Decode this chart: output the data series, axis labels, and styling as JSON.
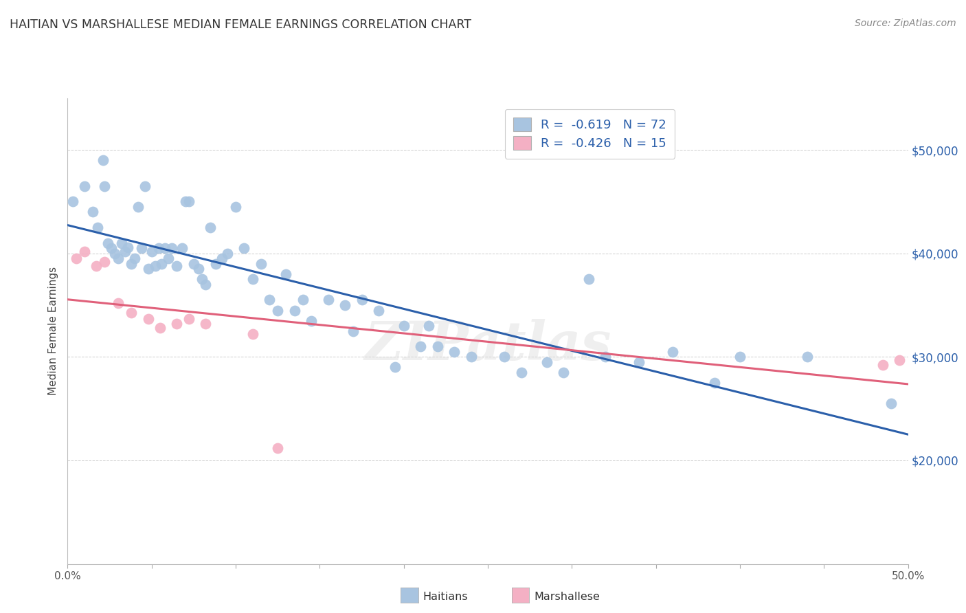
{
  "title": "HAITIAN VS MARSHALLESE MEDIAN FEMALE EARNINGS CORRELATION CHART",
  "source": "Source: ZipAtlas.com",
  "ylabel": "Median Female Earnings",
  "ytick_labels": [
    "$20,000",
    "$30,000",
    "$40,000",
    "$50,000"
  ],
  "ytick_values": [
    20000,
    30000,
    40000,
    50000
  ],
  "ymin": 10000,
  "ymax": 55000,
  "xmin": 0.0,
  "xmax": 0.5,
  "haitian_R": "-0.619",
  "haitian_N": "72",
  "marshallese_R": "-0.426",
  "marshallese_N": "15",
  "haitian_color": "#a8c4e0",
  "haitian_line_color": "#2b5faa",
  "marshallese_color": "#f4b0c4",
  "marshallese_line_color": "#e0607a",
  "legend_text_color": "#2b5faa",
  "title_color": "#333333",
  "watermark": "ZIPatlas",
  "grid_color": "#cccccc",
  "haitian_x": [
    0.003,
    0.01,
    0.015,
    0.018,
    0.021,
    0.022,
    0.024,
    0.026,
    0.028,
    0.03,
    0.032,
    0.034,
    0.036,
    0.038,
    0.04,
    0.042,
    0.044,
    0.046,
    0.048,
    0.05,
    0.052,
    0.054,
    0.056,
    0.058,
    0.06,
    0.062,
    0.065,
    0.068,
    0.07,
    0.072,
    0.075,
    0.078,
    0.08,
    0.082,
    0.085,
    0.088,
    0.092,
    0.095,
    0.1,
    0.105,
    0.11,
    0.115,
    0.12,
    0.125,
    0.13,
    0.135,
    0.14,
    0.145,
    0.155,
    0.165,
    0.17,
    0.175,
    0.185,
    0.195,
    0.2,
    0.21,
    0.215,
    0.22,
    0.23,
    0.24,
    0.26,
    0.27,
    0.285,
    0.295,
    0.31,
    0.32,
    0.34,
    0.36,
    0.385,
    0.4,
    0.44,
    0.49
  ],
  "haitian_y": [
    45000,
    46500,
    44000,
    42500,
    49000,
    46500,
    41000,
    40500,
    40000,
    39500,
    41000,
    40200,
    40600,
    39000,
    39500,
    44500,
    40500,
    46500,
    38500,
    40200,
    38800,
    40500,
    39000,
    40500,
    39500,
    40500,
    38800,
    40500,
    45000,
    45000,
    39000,
    38500,
    37500,
    37000,
    42500,
    39000,
    39500,
    40000,
    44500,
    40500,
    37500,
    39000,
    35500,
    34500,
    38000,
    34500,
    35500,
    33500,
    35500,
    35000,
    32500,
    35500,
    34500,
    29000,
    33000,
    31000,
    33000,
    31000,
    30500,
    30000,
    30000,
    28500,
    29500,
    28500,
    37500,
    30000,
    29500,
    30500,
    27500,
    30000,
    30000,
    25500
  ],
  "marshallese_x": [
    0.005,
    0.01,
    0.017,
    0.022,
    0.03,
    0.038,
    0.048,
    0.055,
    0.065,
    0.072,
    0.082,
    0.11,
    0.125,
    0.485,
    0.495
  ],
  "marshallese_y": [
    39500,
    40200,
    38800,
    39200,
    35200,
    34300,
    33700,
    32800,
    33200,
    33700,
    33200,
    32200,
    21200,
    29200,
    29700
  ]
}
